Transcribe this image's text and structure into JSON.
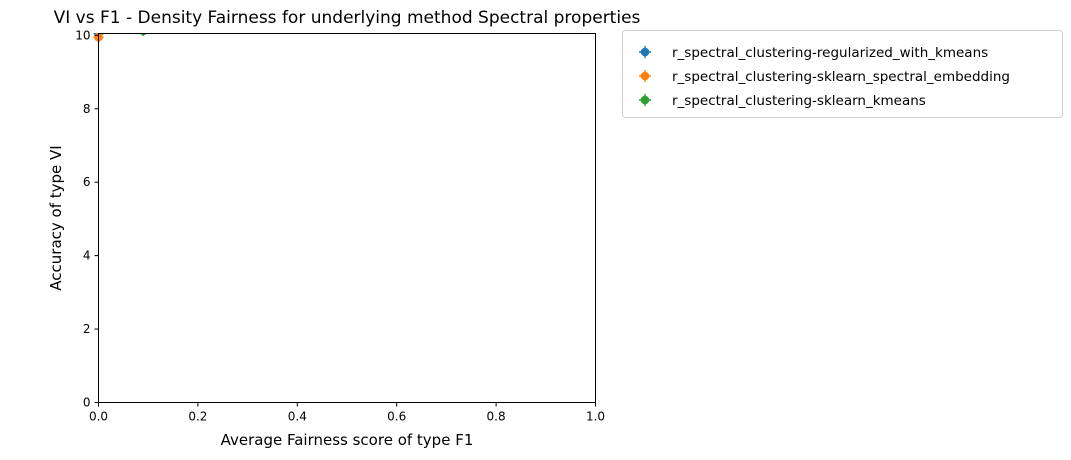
{
  "chart_data": {
    "type": "scatter",
    "title": "VI vs F1 - Density Fairness for underlying method Spectral properties",
    "xlabel": "Average Fairness score of type F1",
    "ylabel": "Accuracy of type VI",
    "xlim": [
      0.0,
      1.0
    ],
    "ylim": [
      0,
      10.05
    ],
    "xticks": [
      "0.0",
      "0.2",
      "0.4",
      "0.6",
      "0.8",
      "1.0"
    ],
    "yticks": [
      "0",
      "2",
      "4",
      "6",
      "8",
      "10"
    ],
    "grid": false,
    "legend_position": "outside-upper-right",
    "error_bars": true,
    "series": [
      {
        "name": "r_spectral_clustering-regularized_with_kmeans",
        "color": "#1f77b4",
        "points": [
          {
            "x": 0.0,
            "y": 10.05
          }
        ]
      },
      {
        "name": "r_spectral_clustering-sklearn_spectral_embedding",
        "color": "#ff7f0e",
        "points": [
          {
            "x": 0.0,
            "y": 9.95
          }
        ]
      },
      {
        "name": "r_spectral_clustering-sklearn_kmeans",
        "color": "#2ca02c",
        "points": [
          {
            "x": 0.09,
            "y": 10.12
          }
        ]
      }
    ]
  }
}
